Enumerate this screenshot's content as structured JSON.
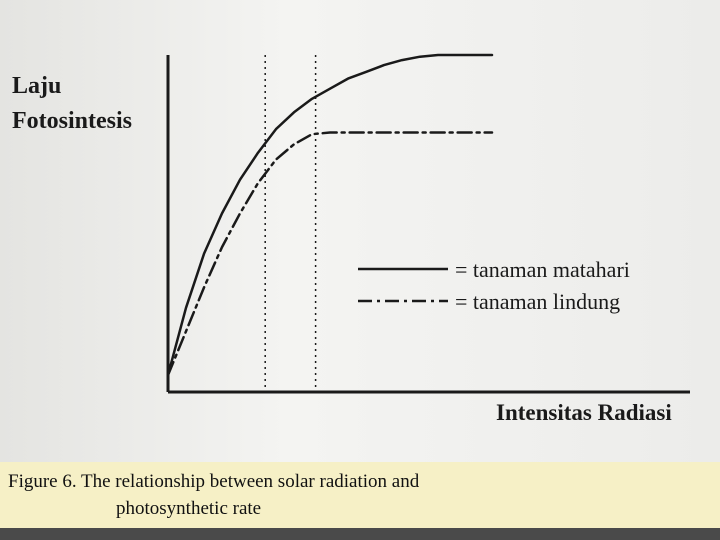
{
  "chart_data": {
    "type": "line",
    "ylabel_lines": [
      "Laju",
      "Fotosintesis"
    ],
    "xlabel": "Intensitas Radiasi",
    "x": [
      0,
      0.05,
      0.1,
      0.15,
      0.2,
      0.25,
      0.3,
      0.35,
      0.4,
      0.45,
      0.5,
      0.55,
      0.6,
      0.65,
      0.7,
      0.75,
      0.8,
      0.85,
      0.9,
      0.95,
      1.0
    ],
    "xlim": [
      0,
      1
    ],
    "ylim": [
      0,
      1
    ],
    "series": [
      {
        "name": "= tanaman matahari",
        "style": "solid",
        "values": [
          0.05,
          0.25,
          0.41,
          0.53,
          0.63,
          0.71,
          0.78,
          0.83,
          0.87,
          0.9,
          0.93,
          0.95,
          0.97,
          0.985,
          0.995,
          1.0,
          1.0,
          1.0,
          1.0,
          null,
          null
        ]
      },
      {
        "name": "= tanaman lindung",
        "style": "dash-dot",
        "values": [
          0.05,
          0.18,
          0.31,
          0.43,
          0.53,
          0.62,
          0.69,
          0.735,
          0.765,
          0.77,
          0.77,
          0.77,
          0.77,
          0.77,
          0.77,
          0.77,
          0.77,
          0.77,
          0.77,
          null,
          null
        ]
      }
    ],
    "reference_lines": [
      {
        "style": "dotted",
        "x": 0.27
      },
      {
        "style": "dotted",
        "x": 0.41
      }
    ],
    "legend_position": "right"
  },
  "caption": {
    "line1": "Figure 6.  The relationship between solar radiation and",
    "line2": "photosynthetic rate"
  },
  "colors": {
    "ink": "#1a1a1a",
    "caption_background": "#f6f0c6",
    "bottom_bar": "#4a4a4a"
  }
}
